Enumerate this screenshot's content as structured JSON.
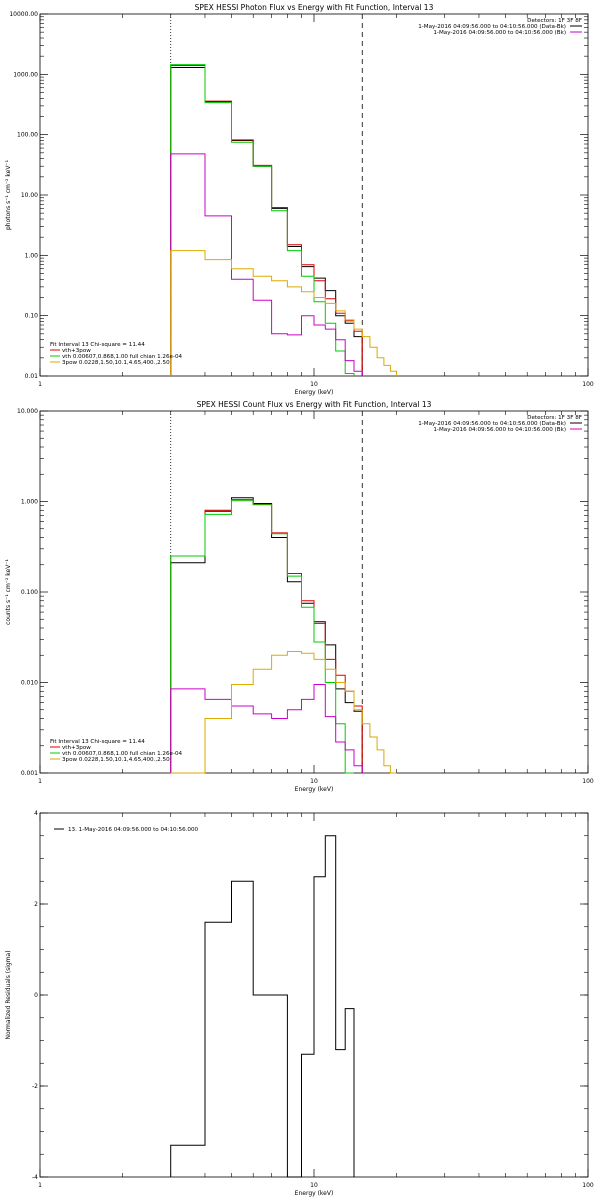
{
  "colors": {
    "black": "#000000",
    "red": "#dd0000",
    "green": "#00cc00",
    "magenta": "#cc00cc",
    "yellow": "#ddaa00"
  },
  "chart_data": [
    {
      "type": "line",
      "title": "SPEX HESSI Photon Flux vs Energy with Fit Function, Interval 13",
      "xlabel": "Energy (keV)",
      "ylabel": "photons s⁻¹ cm⁻² keV⁻¹",
      "xscale": "log",
      "yscale": "log",
      "xlim": [
        1,
        100
      ],
      "ylim": [
        0.01,
        10000
      ],
      "xticks": [
        {
          "v": 1,
          "l": "1"
        },
        {
          "v": 10,
          "l": "10"
        },
        {
          "v": 100,
          "l": "100"
        }
      ],
      "yticks": [
        {
          "v": 0.01,
          "l": "0.01"
        },
        {
          "v": 0.1,
          "l": "0.10"
        },
        {
          "v": 1,
          "l": "1.00"
        },
        {
          "v": 10,
          "l": "10.00"
        },
        {
          "v": 100,
          "l": "100.00"
        },
        {
          "v": 1000,
          "l": "1000.00"
        },
        {
          "v": 10000,
          "l": "10000.00"
        }
      ],
      "vlines": [
        {
          "x": 3,
          "style": "dotted"
        },
        {
          "x": 15,
          "style": "dashed"
        }
      ],
      "legend_right": {
        "detectors": "Detectors: 1F 3F 8F",
        "items": [
          {
            "label": "1-May-2016 04:09:56.000 to 04:10:56.000 (Data-Bk)",
            "color": "black"
          },
          {
            "label": "1-May-2016 04:09:56.000 to 04:10:56.000 (Bk)",
            "color": "magenta"
          }
        ]
      },
      "legend_left": {
        "fit": "Fit Interval 13    Chi-square = 11.44",
        "items": [
          {
            "label": "vth+3pow",
            "color": "red"
          },
          {
            "label": "vth 0.00607,0.868,1.00  full chian 1.26e-04",
            "color": "green"
          },
          {
            "label": "3pow 0.0228,1.50,10.1,4.65,400.,2.50",
            "color": "yellow"
          }
        ]
      },
      "edges": [
        3,
        4,
        5,
        6,
        7,
        8,
        9,
        10,
        11,
        12,
        13,
        14,
        15,
        16,
        17,
        18,
        19,
        20
      ],
      "series": [
        {
          "name": "Data-Bk",
          "color": "black",
          "values": [
            1300,
            350,
            80,
            30,
            6,
            1.4,
            0.65,
            0.42,
            0.26,
            0.1,
            0.075,
            0.045,
            null,
            null,
            null,
            null,
            null
          ]
        },
        {
          "name": "vth+3pow",
          "color": "red",
          "values": [
            1400,
            360,
            82,
            31,
            6.2,
            1.5,
            0.7,
            0.38,
            0.19,
            0.11,
            0.082,
            0.055,
            null,
            null,
            null,
            null,
            null
          ]
        },
        {
          "name": "vth",
          "color": "green",
          "values": [
            1450,
            340,
            75,
            30,
            5.5,
            1.2,
            0.45,
            0.17,
            0.075,
            0.026,
            0.011,
            null,
            null,
            null,
            null,
            null,
            null
          ]
        },
        {
          "name": "Bk",
          "color": "magenta",
          "values": [
            48,
            4.5,
            0.4,
            0.18,
            0.05,
            0.048,
            0.1,
            0.07,
            0.06,
            0.04,
            0.018,
            0.012,
            null,
            null,
            null,
            null,
            null
          ]
        },
        {
          "name": "3pow",
          "color": "yellow",
          "values": [
            1.2,
            0.85,
            0.6,
            0.45,
            0.38,
            0.3,
            0.25,
            0.2,
            0.16,
            0.12,
            0.085,
            0.06,
            0.045,
            0.03,
            0.02,
            0.015,
            0.012
          ]
        }
      ]
    },
    {
      "type": "line",
      "title": "SPEX HESSI Count Flux vs Energy with Fit Function, Interval 13",
      "xlabel": "Energy (keV)",
      "ylabel": "counts s⁻¹ cm⁻² keV⁻¹",
      "xscale": "log",
      "yscale": "log",
      "xlim": [
        1,
        100
      ],
      "ylim": [
        0.001,
        10
      ],
      "xticks": [
        {
          "v": 1,
          "l": "1"
        },
        {
          "v": 10,
          "l": "10"
        },
        {
          "v": 100,
          "l": "100"
        }
      ],
      "yticks": [
        {
          "v": 0.001,
          "l": "0.001"
        },
        {
          "v": 0.01,
          "l": "0.010"
        },
        {
          "v": 0.1,
          "l": "0.100"
        },
        {
          "v": 1,
          "l": "1.000"
        },
        {
          "v": 10,
          "l": "10.000"
        }
      ],
      "vlines": [
        {
          "x": 3,
          "style": "dotted"
        },
        {
          "x": 15,
          "style": "dashed"
        }
      ],
      "legend_right": {
        "detectors": "Detectors: 1F 3F 8F",
        "items": [
          {
            "label": "1-May-2016 04:09:56.000 to 04:10:56.000 (Data-Bk)",
            "color": "black"
          },
          {
            "label": "1-May-2016 04:09:56.000 to 04:10:56.000 (Bk)",
            "color": "magenta"
          }
        ]
      },
      "legend_left": {
        "fit": "Fit Interval 13    Chi-square = 11.44",
        "items": [
          {
            "label": "vth+3pow",
            "color": "red"
          },
          {
            "label": "vth 0.00607,0.868,1.00  full chian 1.26e-04",
            "color": "green"
          },
          {
            "label": "3pow 0.0228,1.50,10.1,4.65,400.,2.50",
            "color": "yellow"
          }
        ]
      },
      "edges": [
        3,
        4,
        5,
        6,
        7,
        8,
        9,
        10,
        11,
        12,
        13,
        14,
        15,
        16,
        17,
        18,
        19,
        20
      ],
      "series": [
        {
          "name": "Data-Bk",
          "color": "black",
          "values": [
            0.21,
            0.78,
            1.1,
            0.95,
            0.4,
            0.13,
            0.075,
            0.047,
            0.026,
            0.0085,
            0.006,
            0.0048,
            null,
            null,
            null,
            null,
            null
          ]
        },
        {
          "name": "vth+3pow",
          "color": "red",
          "values": [
            0.25,
            0.8,
            1.05,
            0.93,
            0.45,
            0.16,
            0.08,
            0.045,
            0.018,
            0.012,
            0.008,
            0.0055,
            null,
            null,
            null,
            null,
            null
          ]
        },
        {
          "name": "vth",
          "color": "green",
          "values": [
            0.25,
            0.72,
            1.02,
            0.92,
            0.44,
            0.15,
            0.068,
            0.028,
            0.01,
            0.0035,
            0.001,
            null,
            null,
            null,
            null,
            null,
            null
          ]
        },
        {
          "name": "Bk",
          "color": "magenta",
          "values": [
            0.0085,
            0.0065,
            0.0055,
            0.0045,
            0.004,
            0.005,
            0.0065,
            0.0095,
            0.0042,
            0.0022,
            0.0018,
            0.0012,
            null,
            null,
            null,
            null,
            null
          ]
        },
        {
          "name": "3pow",
          "color": "yellow",
          "values": [
            0.001,
            0.004,
            0.0095,
            0.014,
            0.02,
            0.022,
            0.021,
            0.018,
            0.014,
            0.01,
            0.008,
            0.005,
            0.0035,
            0.0025,
            0.0018,
            0.0012,
            0.001
          ]
        }
      ]
    },
    {
      "type": "line",
      "xlabel": "Energy (keV)",
      "ylabel": "Normalized Residuals (sigma)",
      "xscale": "log",
      "yscale": "linear",
      "xlim": [
        1,
        100
      ],
      "ylim": [
        -4,
        4
      ],
      "xticks": [
        {
          "v": 1,
          "l": "1"
        },
        {
          "v": 10,
          "l": "10"
        },
        {
          "v": 100,
          "l": "100"
        }
      ],
      "yticks": [
        {
          "v": -4,
          "l": "-4"
        },
        {
          "v": -2,
          "l": "-2"
        },
        {
          "v": 0,
          "l": "0"
        },
        {
          "v": 2,
          "l": "2"
        },
        {
          "v": 4,
          "l": "4"
        }
      ],
      "vlines": [],
      "legend_left": {
        "fit": "",
        "items": [
          {
            "label": "13.  1-May-2016 04:09:56.000 to 04:10:56.000",
            "color": "black"
          }
        ]
      },
      "edges": [
        3,
        4,
        5,
        6,
        7,
        8,
        9,
        10,
        11,
        12,
        13,
        14,
        15
      ],
      "series": [
        {
          "name": "residuals",
          "color": "black",
          "values": [
            -3.3,
            1.6,
            2.5,
            0.0,
            0.0,
            -4.0,
            -1.3,
            2.6,
            3.5,
            -1.2,
            -0.3,
            null
          ]
        }
      ]
    }
  ]
}
